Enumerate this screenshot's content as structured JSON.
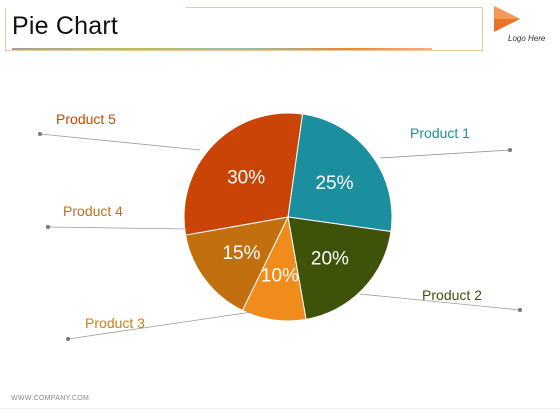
{
  "slide": {
    "title": "Pie Chart",
    "logo_text": "Logo Here",
    "footer": "WWW.COMPANY.COM"
  },
  "colors": {
    "accent_orange": "#ef7d1a",
    "logo": "#e8752a"
  },
  "chart_data": {
    "type": "pie",
    "title": "",
    "slices": [
      {
        "label": "Product 1",
        "value": 25,
        "display": "25%",
        "color": "#1b8f9e"
      },
      {
        "label": "Product 2",
        "value": 20,
        "display": "20%",
        "color": "#3f5209"
      },
      {
        "label": "Product 3",
        "value": 10,
        "display": "10%",
        "color": "#ef8c1c"
      },
      {
        "label": "Product 4",
        "value": 15,
        "display": "15%",
        "color": "#c2700f"
      },
      {
        "label": "Product 5",
        "value": 30,
        "display": "30%",
        "color": "#c94406"
      }
    ],
    "start_angle_deg": 8,
    "legend": "callouts"
  }
}
